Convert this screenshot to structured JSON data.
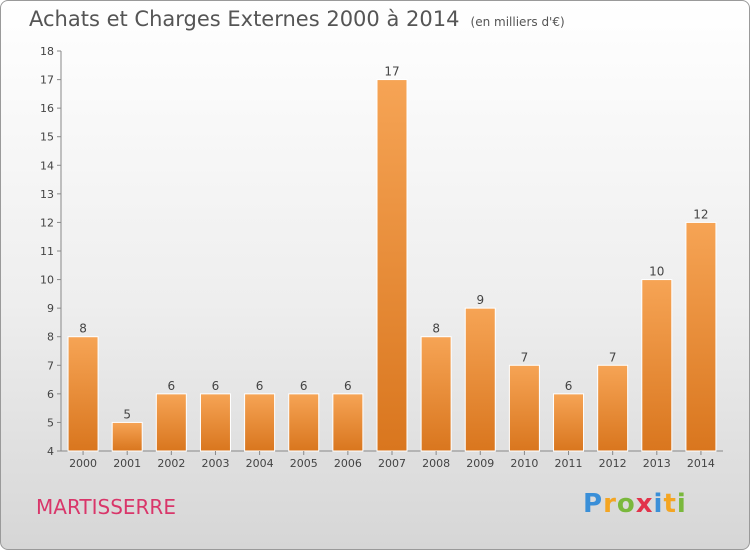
{
  "header": {
    "title": "Achats et Charges Externes 2000 à 2014",
    "subtitle": "(en milliers d'€)"
  },
  "commune": "MARTISSERRE",
  "logo": {
    "text": "Proxiti",
    "letters": [
      {
        "char": "P",
        "color": "#3a8fd8"
      },
      {
        "char": "r",
        "color": "#f4a522"
      },
      {
        "char": "o",
        "color": "#7ab83c"
      },
      {
        "char": "x",
        "color": "#e2334a"
      },
      {
        "char": "i",
        "color": "#3a8fd8"
      },
      {
        "char": "t",
        "color": "#f4a522"
      },
      {
        "char": "i",
        "color": "#7ab83c"
      }
    ]
  },
  "chart_data": {
    "type": "bar",
    "title": "Achats et Charges Externes 2000 à 2014",
    "subtitle": "(en milliers d'€)",
    "categories": [
      "2000",
      "2001",
      "2002",
      "2003",
      "2004",
      "2005",
      "2006",
      "2007",
      "2008",
      "2009",
      "2010",
      "2011",
      "2012",
      "2013",
      "2014"
    ],
    "values": [
      8,
      5,
      6,
      6,
      6,
      6,
      6,
      17,
      8,
      9,
      7,
      6,
      7,
      10,
      12
    ],
    "ylim": [
      4,
      18
    ],
    "yticks": [
      4,
      5,
      6,
      7,
      8,
      9,
      10,
      11,
      12,
      13,
      14,
      15,
      16,
      17,
      18
    ],
    "grid": false,
    "legend": "none",
    "bar_color_light": "#f6a455",
    "bar_color_dark": "#d9761e",
    "axis_color": "#888888",
    "label_color": "#444444"
  }
}
